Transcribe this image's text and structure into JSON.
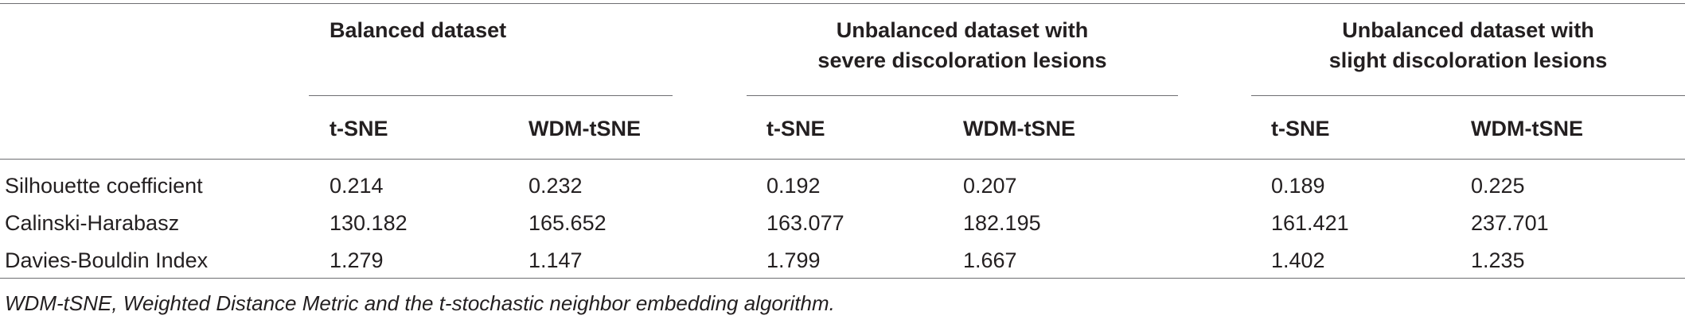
{
  "groups": [
    {
      "label_line1": "Balanced dataset",
      "label_line2": ""
    },
    {
      "label_line1": "Unbalanced dataset with",
      "label_line2": "severe discoloration lesions"
    },
    {
      "label_line1": "Unbalanced dataset with",
      "label_line2": "slight discoloration lesions"
    }
  ],
  "methods": [
    "t-SNE",
    "WDM-tSNE",
    "t-SNE",
    "WDM-tSNE",
    "t-SNE",
    "WDM-tSNE"
  ],
  "rows": [
    {
      "label": "Silhouette coefficient",
      "values": [
        "0.214",
        "0.232",
        "0.192",
        "0.207",
        "0.189",
        "0.225"
      ]
    },
    {
      "label": "Calinski-Harabasz",
      "values": [
        "130.182",
        "165.652",
        "163.077",
        "182.195",
        "161.421",
        "237.701"
      ]
    },
    {
      "label": "Davies-Bouldin Index",
      "values": [
        "1.279",
        "1.147",
        "1.799",
        "1.667",
        "1.402",
        "1.235"
      ]
    }
  ],
  "footnote": "WDM-tSNE, Weighted Distance Metric and the t-stochastic neighbor embedding algorithm."
}
